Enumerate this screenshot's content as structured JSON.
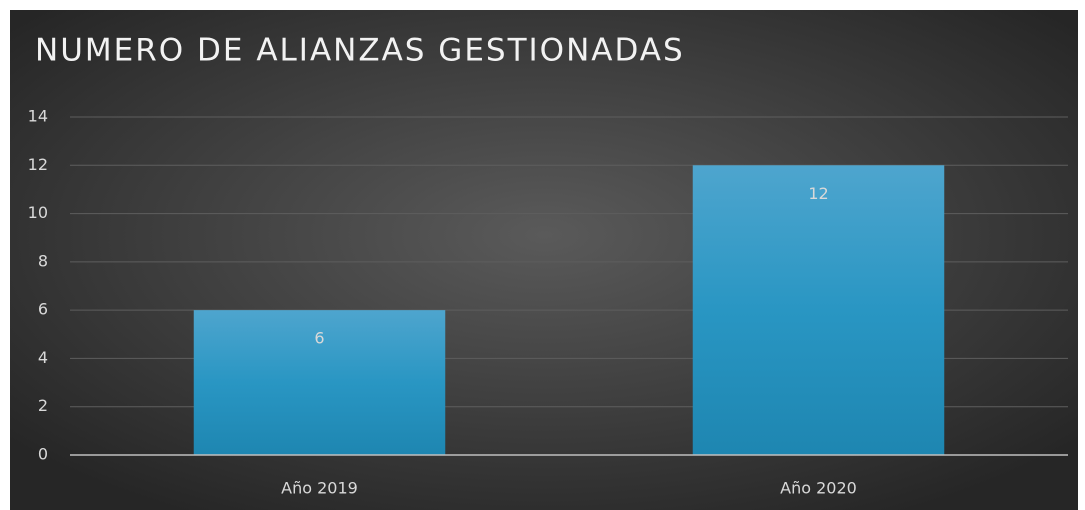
{
  "chart_data": {
    "type": "bar",
    "title": "NUMERO DE ALIANZAS GESTIONADAS",
    "categories": [
      "Año 2019",
      "Año 2020"
    ],
    "values": [
      6,
      12
    ],
    "color": "#2b93bf",
    "ylim": [
      0,
      14
    ],
    "yticks": [
      0,
      2,
      4,
      6,
      8,
      10,
      12,
      14
    ],
    "grid": true,
    "data_labels": true
  }
}
